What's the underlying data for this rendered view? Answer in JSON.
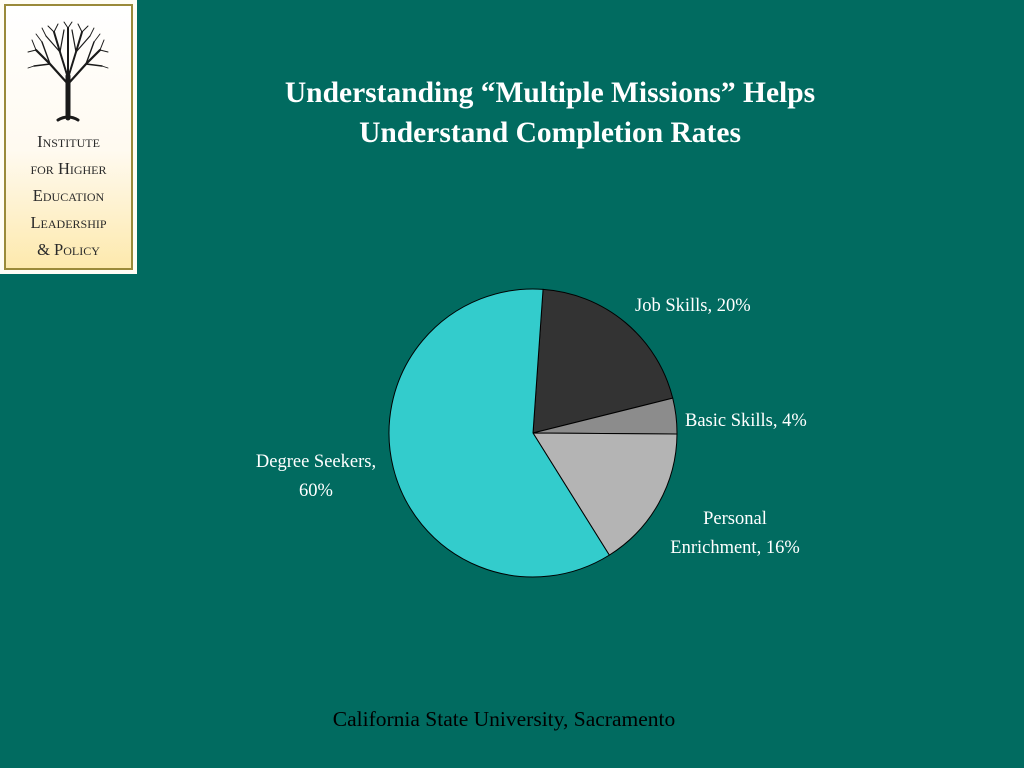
{
  "logo": {
    "lines": [
      "Institute",
      "for Higher",
      "Education",
      "Leadership",
      "& Policy"
    ],
    "icon": "tree-icon"
  },
  "title": {
    "line1": "Understanding “Multiple Missions” Helps",
    "line2": "Understand Completion Rates"
  },
  "chart_data": {
    "type": "pie",
    "title": "",
    "slices": [
      {
        "label_lines": [
          "Job Skills, 20%"
        ],
        "value": 20,
        "color": "#333333"
      },
      {
        "label_lines": [
          "Basic Skills, 4%"
        ],
        "value": 4,
        "color": "#8c8c8c"
      },
      {
        "label_lines": [
          "Personal",
          "Enrichment, 16%"
        ],
        "value": 16,
        "color": "#b4b4b4"
      },
      {
        "label_lines": [
          "Degree Seekers,",
          "60%"
        ],
        "value": 60,
        "color": "#33cccc"
      }
    ],
    "legend": "none"
  },
  "footer": {
    "text": "California State University, Sacramento"
  }
}
